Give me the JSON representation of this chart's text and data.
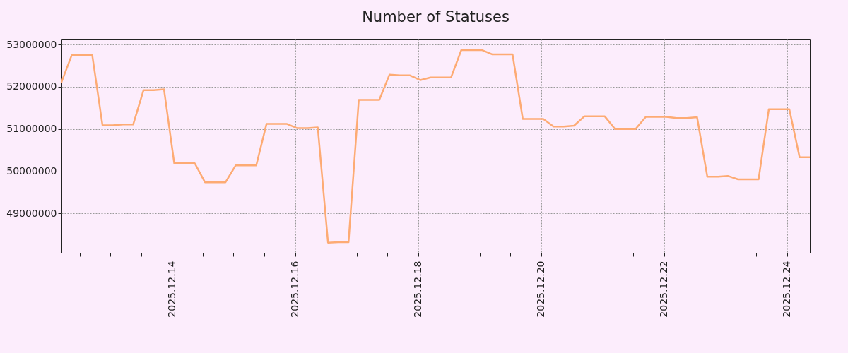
{
  "chart_data": {
    "type": "line",
    "title": "Number of Statuses",
    "x": [
      "2025-12-12T04:52",
      "2025-12-12T08:52",
      "2025-12-12T12:52",
      "2025-12-12T16:52",
      "2025-12-12T20:52",
      "2025-12-13T00:52",
      "2025-12-13T04:52",
      "2025-12-13T08:52",
      "2025-12-13T12:52",
      "2025-12-13T16:52",
      "2025-12-13T20:52",
      "2025-12-14T00:52",
      "2025-12-14T04:52",
      "2025-12-14T08:52",
      "2025-12-14T12:52",
      "2025-12-14T16:52",
      "2025-12-14T20:52",
      "2025-12-15T00:52",
      "2025-12-15T04:52",
      "2025-12-15T08:52",
      "2025-12-15T12:52",
      "2025-12-15T16:52",
      "2025-12-15T20:52",
      "2025-12-16T00:52",
      "2025-12-16T04:52",
      "2025-12-16T08:52",
      "2025-12-16T12:52",
      "2025-12-16T16:52",
      "2025-12-16T20:52",
      "2025-12-17T00:52",
      "2025-12-17T04:52",
      "2025-12-17T08:52",
      "2025-12-17T12:52",
      "2025-12-17T16:52",
      "2025-12-17T20:52",
      "2025-12-18T00:52",
      "2025-12-18T04:52",
      "2025-12-18T08:52",
      "2025-12-18T12:52",
      "2025-12-18T16:52",
      "2025-12-18T20:52",
      "2025-12-19T00:52",
      "2025-12-19T04:52",
      "2025-12-19T08:52",
      "2025-12-19T12:52",
      "2025-12-19T16:52",
      "2025-12-19T20:52",
      "2025-12-20T00:52",
      "2025-12-20T04:52",
      "2025-12-20T08:52",
      "2025-12-20T12:52",
      "2025-12-20T16:52",
      "2025-12-20T20:52",
      "2025-12-21T00:52",
      "2025-12-21T04:52",
      "2025-12-21T08:52",
      "2025-12-21T12:52",
      "2025-12-21T16:52",
      "2025-12-21T20:52",
      "2025-12-22T00:52",
      "2025-12-22T04:52",
      "2025-12-22T08:52",
      "2025-12-22T12:52",
      "2025-12-22T16:52",
      "2025-12-22T20:52",
      "2025-12-23T00:52",
      "2025-12-23T04:52",
      "2025-12-23T08:52",
      "2025-12-23T12:52",
      "2025-12-23T16:52",
      "2025-12-23T20:52",
      "2025-12-24T00:52",
      "2025-12-24T04:52",
      "2025-12-24T08:52"
    ],
    "series": [
      {
        "color": "#fdab74",
        "values": [
          52110000,
          52750000,
          52750000,
          52750000,
          51090000,
          51090000,
          51110000,
          51110000,
          51920000,
          51920000,
          51940000,
          50190000,
          50190000,
          50190000,
          49740000,
          49740000,
          49740000,
          50140000,
          50140000,
          50140000,
          51120000,
          51120000,
          51120000,
          51020000,
          51020000,
          51040000,
          48310000,
          48320000,
          48320000,
          51690000,
          51690000,
          51690000,
          52290000,
          52270000,
          52270000,
          52160000,
          52220000,
          52220000,
          52220000,
          52870000,
          52870000,
          52870000,
          52770000,
          52770000,
          52770000,
          51240000,
          51240000,
          51240000,
          51060000,
          51060000,
          51080000,
          51300000,
          51300000,
          51300000,
          51000000,
          51000000,
          51000000,
          51290000,
          51290000,
          51290000,
          51260000,
          51260000,
          51280000,
          49870000,
          49870000,
          49890000,
          49810000,
          49810000,
          49810000,
          51470000,
          51470000,
          51470000,
          50330000,
          50330000
        ]
      }
    ],
    "xlim": [
      "2025-12-12T04:52",
      "2025-12-24T08:52"
    ],
    "xticks": [
      {
        "value": "2025-12-12T12:00",
        "label": null
      },
      {
        "value": "2025-12-13T00:00",
        "label": null
      },
      {
        "value": "2025-12-13T12:00",
        "label": null
      },
      {
        "value": "2025-12-14T00:00",
        "label": "2025.12.14"
      },
      {
        "value": "2025-12-14T12:00",
        "label": null
      },
      {
        "value": "2025-12-15T00:00",
        "label": null
      },
      {
        "value": "2025-12-15T12:00",
        "label": null
      },
      {
        "value": "2025-12-16T00:00",
        "label": "2025.12.16"
      },
      {
        "value": "2025-12-16T12:00",
        "label": null
      },
      {
        "value": "2025-12-17T00:00",
        "label": null
      },
      {
        "value": "2025-12-17T12:00",
        "label": null
      },
      {
        "value": "2025-12-18T00:00",
        "label": "2025.12.18"
      },
      {
        "value": "2025-12-18T12:00",
        "label": null
      },
      {
        "value": "2025-12-19T00:00",
        "label": null
      },
      {
        "value": "2025-12-19T12:00",
        "label": null
      },
      {
        "value": "2025-12-20T00:00",
        "label": "2025.12.20"
      },
      {
        "value": "2025-12-20T12:00",
        "label": null
      },
      {
        "value": "2025-12-21T00:00",
        "label": null
      },
      {
        "value": "2025-12-21T12:00",
        "label": null
      },
      {
        "value": "2025-12-22T00:00",
        "label": "2025.12.22"
      },
      {
        "value": "2025-12-22T12:00",
        "label": null
      },
      {
        "value": "2025-12-23T00:00",
        "label": null
      },
      {
        "value": "2025-12-23T12:00",
        "label": null
      },
      {
        "value": "2025-12-24T00:00",
        "label": "2025.12.24"
      }
    ],
    "ylim": [
      48070000,
      53137000
    ],
    "yticks": [
      49000000,
      50000000,
      51000000,
      52000000,
      53000000
    ],
    "grid": true,
    "marker": "none",
    "line_style": "solid"
  }
}
